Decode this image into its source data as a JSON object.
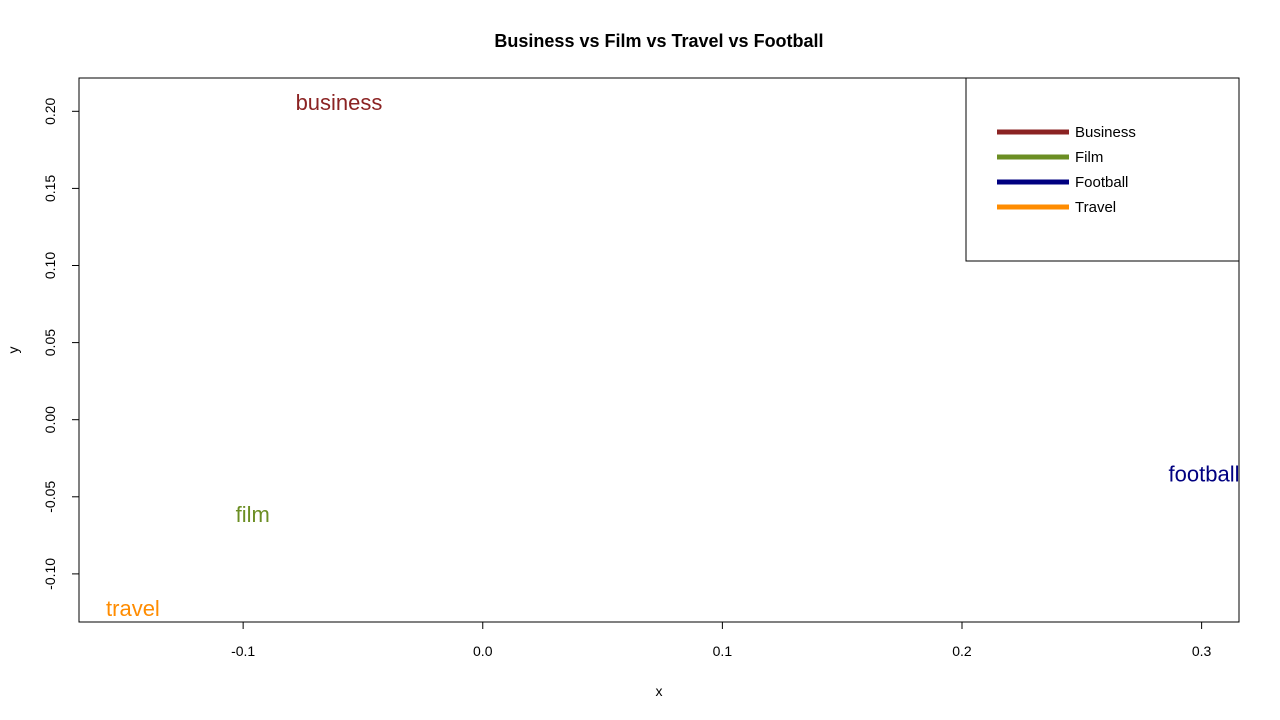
{
  "chart_data": {
    "type": "scatter",
    "title": "Business vs Film vs Travel vs Football",
    "xlabel": "x",
    "ylabel": "y",
    "xlim": [
      -0.1685,
      0.3156
    ],
    "ylim": [
      -0.1312,
      0.2216
    ],
    "x_ticks": [
      -0.1,
      0.0,
      0.1,
      0.2,
      0.3
    ],
    "x_tick_labels": [
      "-0.1",
      "0.0",
      "0.1",
      "0.2",
      "0.3"
    ],
    "y_ticks": [
      -0.1,
      -0.05,
      0.0,
      0.05,
      0.1,
      0.15,
      0.2
    ],
    "y_tick_labels": [
      "-0.10",
      "-0.05",
      "0.00",
      "0.05",
      "0.10",
      "0.15",
      "0.20"
    ],
    "grid": false,
    "legend_position": "top-right",
    "points": [
      {
        "label": "business",
        "x": -0.06,
        "y": 0.206,
        "color": "#8B2323"
      },
      {
        "label": "film",
        "x": -0.096,
        "y": -0.061,
        "color": "#6B8E23"
      },
      {
        "label": "football",
        "x": 0.301,
        "y": -0.035,
        "color": "#000080"
      },
      {
        "label": "travel",
        "x": -0.146,
        "y": -0.122,
        "color": "#FF8C00"
      }
    ],
    "legend": [
      {
        "label": "Business",
        "color": "#8B2323"
      },
      {
        "label": "Film",
        "color": "#6B8E23"
      },
      {
        "label": "Football",
        "color": "#000080"
      },
      {
        "label": "Travel",
        "color": "#FF8C00"
      }
    ]
  }
}
